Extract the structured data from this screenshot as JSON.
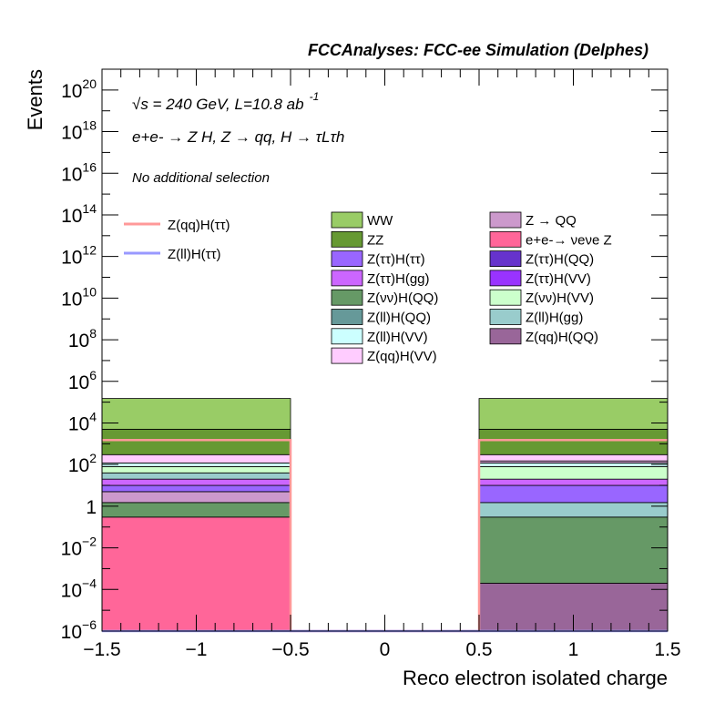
{
  "chart_data": {
    "type": "bar",
    "title": "FCCAnalyses: FCC-ee Simulation (Delphes)",
    "xlabel": "Reco electron isolated charge",
    "ylabel": "Events",
    "xlim": [
      -1.5,
      1.5
    ],
    "ylim": [
      1e-06,
      1e+21
    ],
    "yscale": "log",
    "grid": false,
    "legend": "top-right",
    "x_ticks": [
      "−1.5",
      "−1",
      "−0.5",
      "0",
      "0.5",
      "1",
      "1.5"
    ],
    "y_tick_exponents": [
      -6,
      -4,
      -2,
      0,
      2,
      4,
      6,
      8,
      10,
      12,
      14,
      16,
      18,
      20
    ],
    "y_tick_one_label": "1",
    "annotations": {
      "energy": "√s = 240 GeV, L=10.8 ab",
      "energy_sup": "-1",
      "process": "e+e- → Z H, Z → qq, H → τLτh",
      "selection": "No additional selection"
    },
    "bins": [
      {
        "low": -1.5,
        "high": -0.5
      },
      {
        "low": -0.5,
        "high": 0.5
      },
      {
        "low": 0.5,
        "high": 1.5
      }
    ],
    "stacked_layers": [
      {
        "name": "Z → QQ",
        "color": "#cc99cc",
        "cum": [
          5.0,
          0,
          150
        ]
      },
      {
        "name": "e+e-→ νeνe Z",
        "color": "#ff6699",
        "cum": [
          0.3,
          0,
          null
        ]
      },
      {
        "name": "Z(νν)H(QQ)",
        "color": "#669966",
        "cum": [
          1.5,
          0,
          0.3
        ]
      },
      {
        "name": "Z(ττ)H(ττ)",
        "color": "#9966ff",
        "cum": [
          10,
          0,
          10
        ]
      },
      {
        "name": "Z(ττ)H(gg)",
        "color": "#cc66ff",
        "cum": [
          20,
          0,
          20
        ]
      },
      {
        "name": "Z(ll)H(gg)",
        "color": "#99cccc",
        "cum": [
          40,
          0,
          1.5
        ]
      },
      {
        "name": "Z(νν)H(VV)",
        "color": "#ccffcc",
        "cum": [
          80,
          0,
          80
        ]
      },
      {
        "name": "Z(ll)H(VV)",
        "color": "#ccffff",
        "cum": [
          120,
          0,
          120
        ]
      },
      {
        "name": "Z(qq)H(VV)",
        "color": "#ffccff",
        "cum": [
          300,
          0,
          300
        ]
      },
      {
        "name": "Z(qq)H(QQ)",
        "color": "#996699",
        "cum": [
          null,
          0,
          0.0002
        ]
      },
      {
        "name": "ZZ",
        "color": "#669933",
        "cum": [
          5000,
          0,
          5000
        ]
      },
      {
        "name": "WW",
        "color": "#99cc66",
        "cum": [
          150000,
          0,
          150000
        ]
      }
    ],
    "legend_items": [
      {
        "name": "WW",
        "color": "#99cc66"
      },
      {
        "name": "Z → QQ",
        "color": "#cc99cc"
      },
      {
        "name": "ZZ",
        "color": "#669933"
      },
      {
        "name": "e+e-→ νeνe Z",
        "color": "#ff6699"
      },
      {
        "name": "Z(ττ)H(ττ)",
        "color": "#9966ff"
      },
      {
        "name": "Z(ττ)H(QQ)",
        "color": "#6633cc"
      },
      {
        "name": "Z(ττ)H(gg)",
        "color": "#cc66ff"
      },
      {
        "name": "Z(ττ)H(VV)",
        "color": "#9933ff"
      },
      {
        "name": "Z(νν)H(QQ)",
        "color": "#669966"
      },
      {
        "name": "Z(νν)H(VV)",
        "color": "#ccffcc"
      },
      {
        "name": "Z(ll)H(QQ)",
        "color": "#669999"
      },
      {
        "name": "Z(ll)H(gg)",
        "color": "#99cccc"
      },
      {
        "name": "Z(ll)H(VV)",
        "color": "#ccffff"
      },
      {
        "name": "Z(qq)H(QQ)",
        "color": "#996699"
      },
      {
        "name": "Z(qq)H(VV)",
        "color": "#ffccff"
      }
    ],
    "signals": [
      {
        "name": "Z(qq)H(ττ)",
        "color": "#ff9999",
        "values": [
          1500,
          1e-06,
          1500
        ]
      },
      {
        "name": "Z(ll)H(ττ)",
        "color": "#9999ff",
        "values": [
          1e-06,
          1e-06,
          1e-06
        ]
      }
    ]
  }
}
